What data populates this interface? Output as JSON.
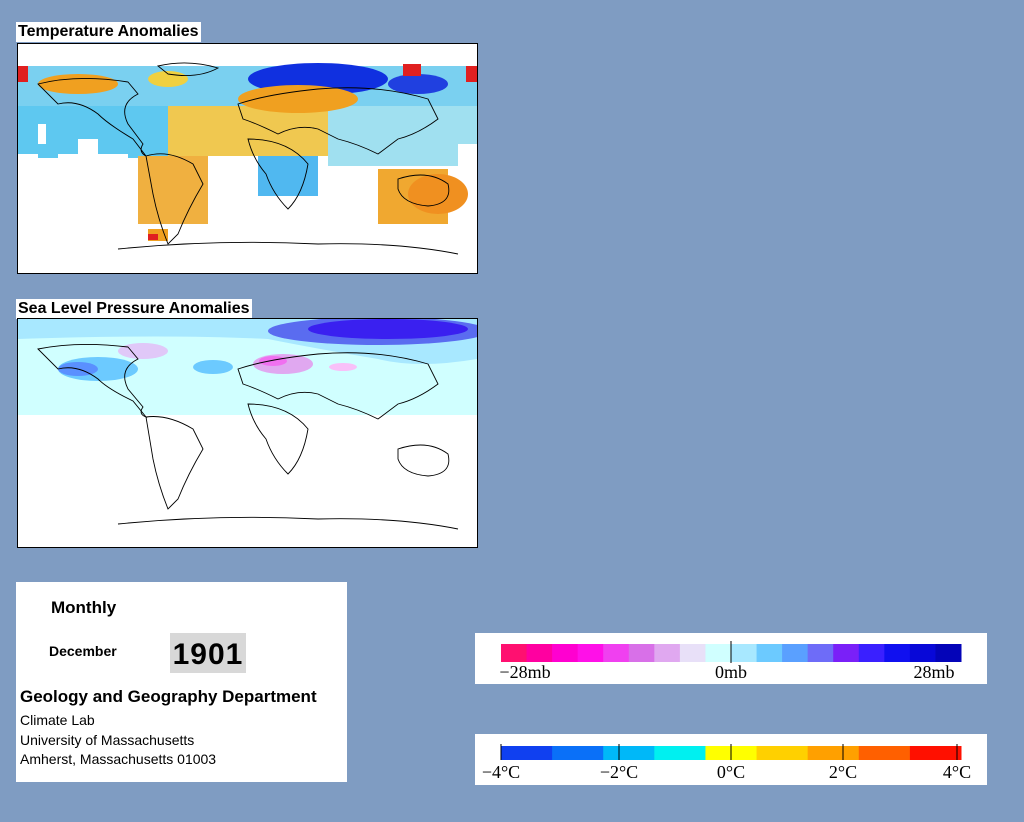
{
  "panels": {
    "temperature": {
      "title": "Temperature Anomalies"
    },
    "pressure": {
      "title": "Sea Level Pressure Anomalies"
    }
  },
  "info": {
    "frequency": "Monthly",
    "month": "December",
    "year": "1901",
    "department": "Geology and Geography Department",
    "lab": "Climate Lab",
    "university": "University of Massachusetts",
    "city": "Amherst, Massachusetts 01003"
  },
  "legends": {
    "pressure": {
      "ticks": [
        "−28mb",
        "0mb",
        "28mb"
      ],
      "colors": [
        "#ff1070",
        "#ff00a0",
        "#ff00d0",
        "#ff10e8",
        "#f040f0",
        "#d870e8",
        "#e0a8f0",
        "#e8e0f8",
        "#d0ffff",
        "#a8e8ff",
        "#6ccaff",
        "#5aa0ff",
        "#6e6cf8",
        "#7a20f8",
        "#3a20ff",
        "#1010f0",
        "#0808d8",
        "#0404b8"
      ]
    },
    "temperature": {
      "ticks": [
        "−4°C",
        "−2°C",
        "0°C",
        "2°C",
        "4°C"
      ],
      "colors": [
        "#1040f0",
        "#0a70f8",
        "#00b8f8",
        "#00f0f0",
        "#ffff00",
        "#ffd000",
        "#ffa000",
        "#ff6000",
        "#ff1000"
      ]
    }
  },
  "colors": {
    "background": "#7f9cc2"
  }
}
